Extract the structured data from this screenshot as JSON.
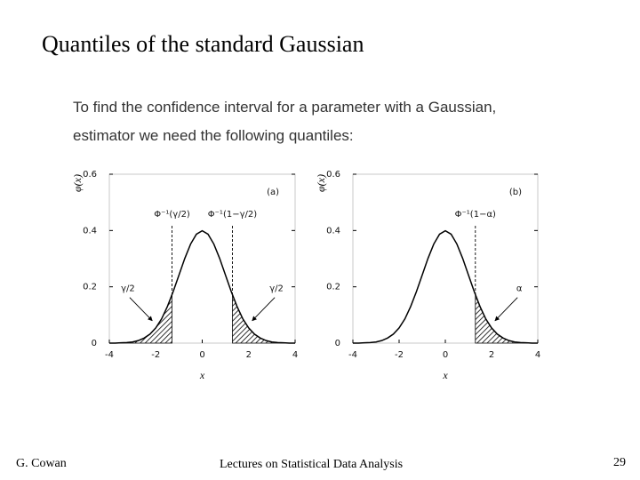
{
  "slide": {
    "title": "Quantiles of the standard Gaussian",
    "text": [
      "To find the confidence interval for a parameter with a Gaussian,",
      "estimator we need the following quantiles:"
    ],
    "footer": {
      "author": "G. Cowan",
      "course": "Lectures on Statistical Data Analysis",
      "page": "29"
    }
  },
  "chart_data": [
    {
      "type": "line",
      "panel": "(a)",
      "color": "#000000",
      "x": [
        -4,
        -3.75,
        -3.5,
        -3.25,
        -3,
        -2.75,
        -2.5,
        -2.25,
        -2,
        -1.75,
        -1.5,
        -1.25,
        -1,
        -0.75,
        -0.5,
        -0.25,
        0,
        0.25,
        0.5,
        0.75,
        1,
        1.25,
        1.5,
        1.75,
        2,
        2.25,
        2.5,
        2.75,
        3,
        3.25,
        3.5,
        3.75,
        4
      ],
      "values": [
        0,
        0,
        0.001,
        0.002,
        0.004,
        0.009,
        0.018,
        0.032,
        0.054,
        0.086,
        0.13,
        0.183,
        0.242,
        0.301,
        0.352,
        0.387,
        0.399,
        0.387,
        0.352,
        0.301,
        0.242,
        0.183,
        0.13,
        0.086,
        0.054,
        0.032,
        0.018,
        0.009,
        0.004,
        0.002,
        0.001,
        0,
        0
      ],
      "xlim": [
        -4,
        4
      ],
      "ylim": [
        0,
        0.6
      ],
      "xticks": [
        -4,
        -2,
        0,
        2,
        4
      ],
      "yticks": [
        0,
        0.2,
        0.4,
        0.6
      ],
      "xlabel": "x",
      "ylabel": "φ(x)",
      "quantiles": [
        {
          "label": "Φ⁻¹(γ/2)",
          "value": -1.3,
          "tail": "lower",
          "tail_label": "γ/2"
        },
        {
          "label": "Φ⁻¹(1−γ/2)",
          "value": 1.3,
          "tail": "upper",
          "tail_label": "γ/2"
        }
      ]
    },
    {
      "type": "line",
      "panel": "(b)",
      "color": "#000000",
      "x": [
        -4,
        -3.75,
        -3.5,
        -3.25,
        -3,
        -2.75,
        -2.5,
        -2.25,
        -2,
        -1.75,
        -1.5,
        -1.25,
        -1,
        -0.75,
        -0.5,
        -0.25,
        0,
        0.25,
        0.5,
        0.75,
        1,
        1.25,
        1.5,
        1.75,
        2,
        2.25,
        2.5,
        2.75,
        3,
        3.25,
        3.5,
        3.75,
        4
      ],
      "values": [
        0,
        0,
        0.001,
        0.002,
        0.004,
        0.009,
        0.018,
        0.032,
        0.054,
        0.086,
        0.13,
        0.183,
        0.242,
        0.301,
        0.352,
        0.387,
        0.399,
        0.387,
        0.352,
        0.301,
        0.242,
        0.183,
        0.13,
        0.086,
        0.054,
        0.032,
        0.018,
        0.009,
        0.004,
        0.002,
        0.001,
        0,
        0
      ],
      "xlim": [
        -4,
        4
      ],
      "ylim": [
        0,
        0.6
      ],
      "xticks": [
        -4,
        -2,
        0,
        2,
        4
      ],
      "yticks": [
        0,
        0.2,
        0.4,
        0.6
      ],
      "xlabel": "x",
      "ylabel": "φ(x)",
      "quantiles": [
        {
          "label": "Φ⁻¹(1−α)",
          "value": 1.3,
          "tail": "upper",
          "tail_label": "α"
        }
      ]
    }
  ]
}
